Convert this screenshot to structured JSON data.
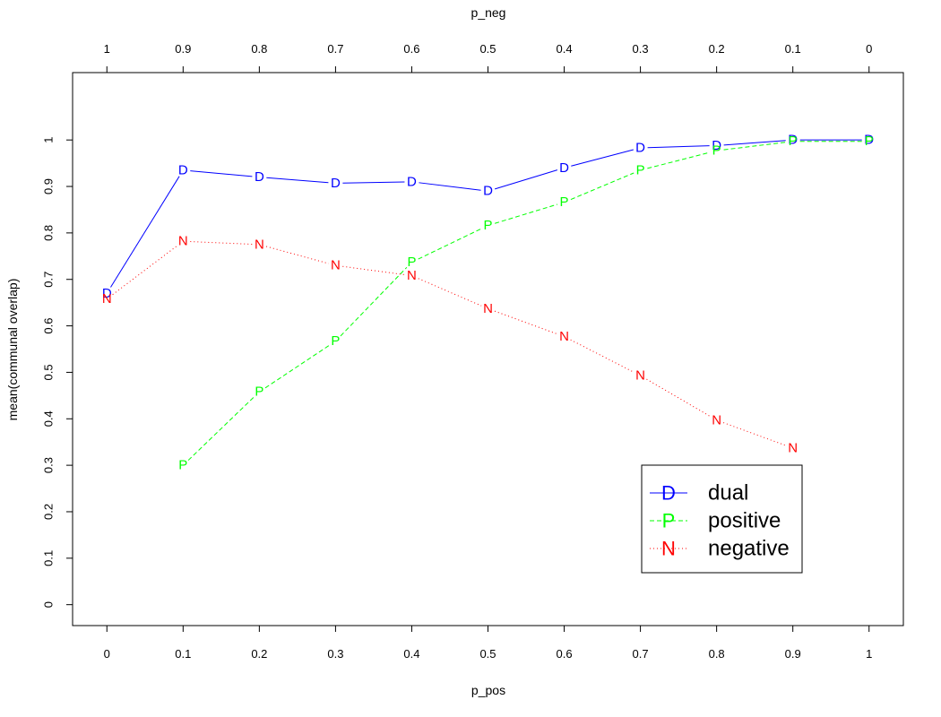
{
  "chart_data": {
    "type": "line",
    "xlabel": "p_pos",
    "x2label": "p_neg",
    "ylabel": "mean(communal overlap)",
    "x": [
      0,
      0.1,
      0.2,
      0.3,
      0.4,
      0.5,
      0.6,
      0.7,
      0.8,
      0.9,
      1
    ],
    "x_tick_labels": [
      "0",
      "0.1",
      "0.2",
      "0.3",
      "0.4",
      "0.5",
      "0.6",
      "0.7",
      "0.8",
      "0.9",
      "1"
    ],
    "x2_tick_labels": [
      "1",
      "0.9",
      "0.8",
      "0.7",
      "0.6",
      "0.5",
      "0.4",
      "0.3",
      "0.2",
      "0.1",
      "0"
    ],
    "xlim": [
      -0.045,
      1.045
    ],
    "ylim": [
      -0.045,
      1.145
    ],
    "y_ticks": [
      0,
      0.1,
      0.2,
      0.3,
      0.4,
      0.5,
      0.6,
      0.7,
      0.8,
      0.9,
      1
    ],
    "y_tick_labels": [
      "0",
      "0.1",
      "0.2",
      "0.3",
      "0.4",
      "0.5",
      "0.6",
      "0.7",
      "0.8",
      "0.9",
      "1"
    ],
    "grid": false,
    "legend_position": "bottom-right",
    "series": [
      {
        "name": "dual",
        "marker": "D",
        "color": "#0000ff",
        "line_style": "solid",
        "values": [
          0.67,
          0.935,
          0.92,
          0.907,
          0.91,
          0.89,
          0.94,
          0.983,
          0.988,
          1.0,
          1.0
        ]
      },
      {
        "name": "positive",
        "marker": "P",
        "color": "#00ff00",
        "line_style": "dashed",
        "values": [
          null,
          0.3,
          0.458,
          0.567,
          0.737,
          0.816,
          0.866,
          0.935,
          0.977,
          0.997,
          0.997
        ]
      },
      {
        "name": "negative",
        "marker": "N",
        "color": "#ff0000",
        "line_style": "dotted",
        "values": [
          0.658,
          0.782,
          0.775,
          0.73,
          0.708,
          0.637,
          0.577,
          0.493,
          0.397,
          0.337,
          null
        ]
      }
    ]
  }
}
